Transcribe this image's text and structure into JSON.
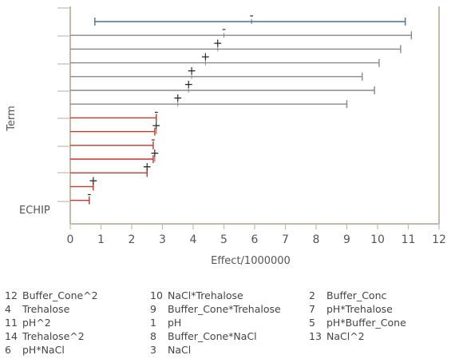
{
  "chart_data": {
    "type": "bar",
    "orientation": "horizontal",
    "title": "",
    "xlabel": "Effect/1000000",
    "ylabel": "Term",
    "corner_label": "ECHIP",
    "xlim": [
      0,
      12
    ],
    "xticks": [
      "0",
      "1",
      "2",
      "3",
      "4",
      "5",
      "6",
      "7",
      "8",
      "9",
      "10",
      "11",
      "12"
    ],
    "grid": false,
    "colors": {
      "top": "#4a6f8f",
      "gray": "#888888",
      "red": "#c0392b",
      "axis": "#c8b8a8"
    },
    "bars": [
      {
        "start": 0.8,
        "end": 10.9,
        "marker_value": 5.9,
        "sign": "-",
        "color": "top"
      },
      {
        "start": 0.0,
        "end": 11.1,
        "marker_value": 5.0,
        "sign": "-",
        "color": "gray"
      },
      {
        "start": 0.0,
        "end": 10.75,
        "marker_value": 4.8,
        "sign": "+",
        "color": "gray"
      },
      {
        "start": 0.0,
        "end": 10.05,
        "marker_value": 4.4,
        "sign": "+",
        "color": "gray"
      },
      {
        "start": 0.0,
        "end": 9.5,
        "marker_value": 3.95,
        "sign": "+",
        "color": "gray"
      },
      {
        "start": 0.0,
        "end": 9.9,
        "marker_value": 3.85,
        "sign": "+",
        "color": "gray"
      },
      {
        "start": 0.0,
        "end": 9.0,
        "marker_value": 3.5,
        "sign": "+",
        "color": "gray"
      },
      {
        "start": 0.0,
        "end": 2.8,
        "marker_value": 2.8,
        "sign": "-",
        "color": "red"
      },
      {
        "start": 0.0,
        "end": 2.75,
        "marker_value": 2.8,
        "sign": "+",
        "color": "red"
      },
      {
        "start": 0.0,
        "end": 2.7,
        "marker_value": 2.7,
        "sign": "-",
        "color": "red"
      },
      {
        "start": 0.0,
        "end": 2.7,
        "marker_value": 2.75,
        "sign": "+",
        "color": "red"
      },
      {
        "start": 0.0,
        "end": 2.5,
        "marker_value": 2.5,
        "sign": "+",
        "color": "red"
      },
      {
        "start": 0.0,
        "end": 0.75,
        "marker_value": 0.75,
        "sign": "+",
        "color": "red"
      },
      {
        "start": 0.0,
        "end": 0.62,
        "marker_value": 0.62,
        "sign": "-",
        "color": "red"
      }
    ],
    "legend": [
      {
        "num": "12",
        "name": "Buffer_Cone^2"
      },
      {
        "num": "10",
        "name": "NaCl*Trehalose"
      },
      {
        "num": "2",
        "name": "Buffer_Conc"
      },
      {
        "num": "4",
        "name": "Trehalose"
      },
      {
        "num": "9",
        "name": "Buffer_Cone*Trehalose"
      },
      {
        "num": "7",
        "name": "pH*Trehalose"
      },
      {
        "num": "11",
        "name": "pH^2"
      },
      {
        "num": "1",
        "name": "pH"
      },
      {
        "num": "5",
        "name": "pH*Buffer_Cone"
      },
      {
        "num": "14",
        "name": "Trehalose^2"
      },
      {
        "num": "8",
        "name": "Buffer_Cone*NaCl"
      },
      {
        "num": "13",
        "name": "NaCl^2"
      },
      {
        "num": "6",
        "name": "pH*NaCl"
      },
      {
        "num": "3",
        "name": "NaCl"
      }
    ]
  }
}
